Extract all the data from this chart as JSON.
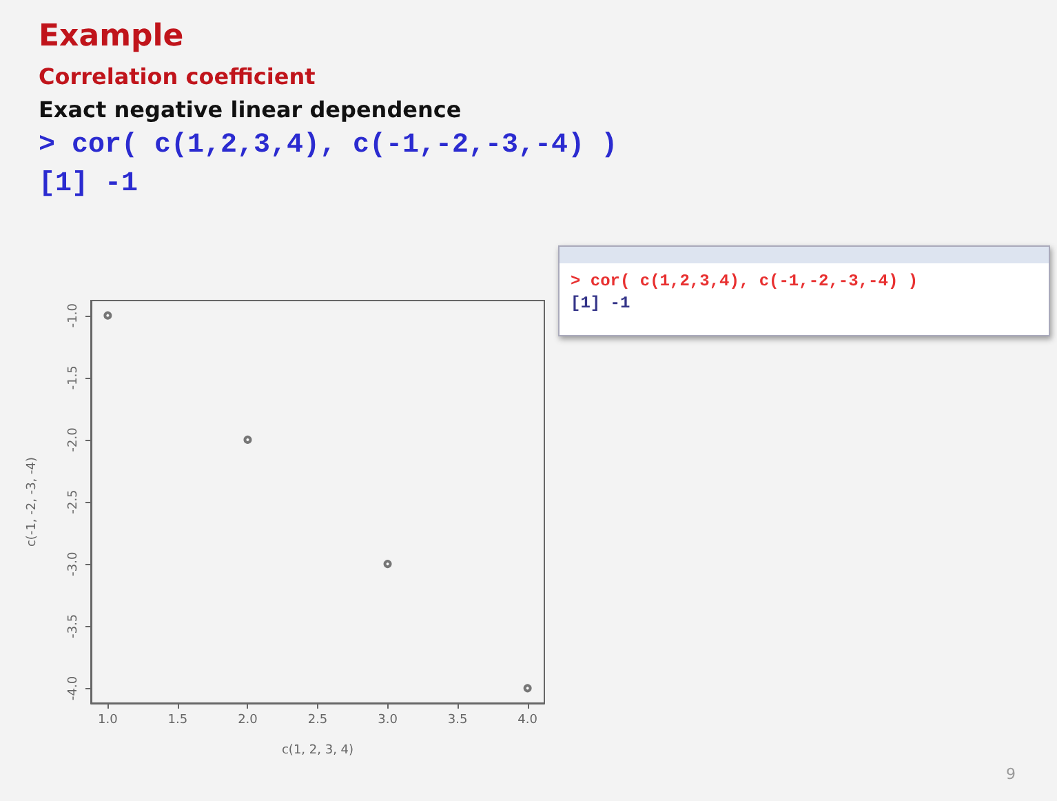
{
  "chart_data": {
    "type": "scatter",
    "title": "Example",
    "subtitle": "Correlation coefficient",
    "xlabel": "c(1, 2, 3, 4)",
    "ylabel": "c(-1, -2, -3, -4)",
    "x": [
      1,
      2,
      3,
      4
    ],
    "series": [
      {
        "color": "#555555",
        "values": [
          -1,
          -2,
          -3,
          -4
        ]
      }
    ],
    "xlim": [
      0.88,
      4.12
    ],
    "xticks": [
      {
        "value": 1,
        "label": "1.0"
      },
      {
        "value": 1.5,
        "label": "1.5"
      },
      {
        "value": 2,
        "label": "2.0"
      },
      {
        "value": 2.5,
        "label": "2.5"
      },
      {
        "value": 3,
        "label": "3.0"
      },
      {
        "value": 3.5,
        "label": "3.5"
      },
      {
        "value": 4,
        "label": "4.0"
      }
    ],
    "ylim": [
      -4.12,
      -0.88
    ],
    "yticks": [
      {
        "value": -4,
        "label": "-4.0"
      },
      {
        "value": -3.5,
        "label": "-3.5"
      },
      {
        "value": -3,
        "label": "-3.0"
      },
      {
        "value": -2.5,
        "label": "-2.5"
      },
      {
        "value": -2,
        "label": "-2.0"
      },
      {
        "value": -1.5,
        "label": "-1.5"
      },
      {
        "value": -1,
        "label": "-1.0"
      }
    ],
    "grid": false,
    "marker": "circle",
    "annotations": [
      "Exact negative linear dependence",
      "> cor( c(1,2,3,4), c(-1,-2,-3,-4) )",
      "[1] -1",
      "> cor( c(1,2,3,4), c(-1,-2,-3,-4) )",
      "[1] -1",
      "9"
    ]
  }
}
